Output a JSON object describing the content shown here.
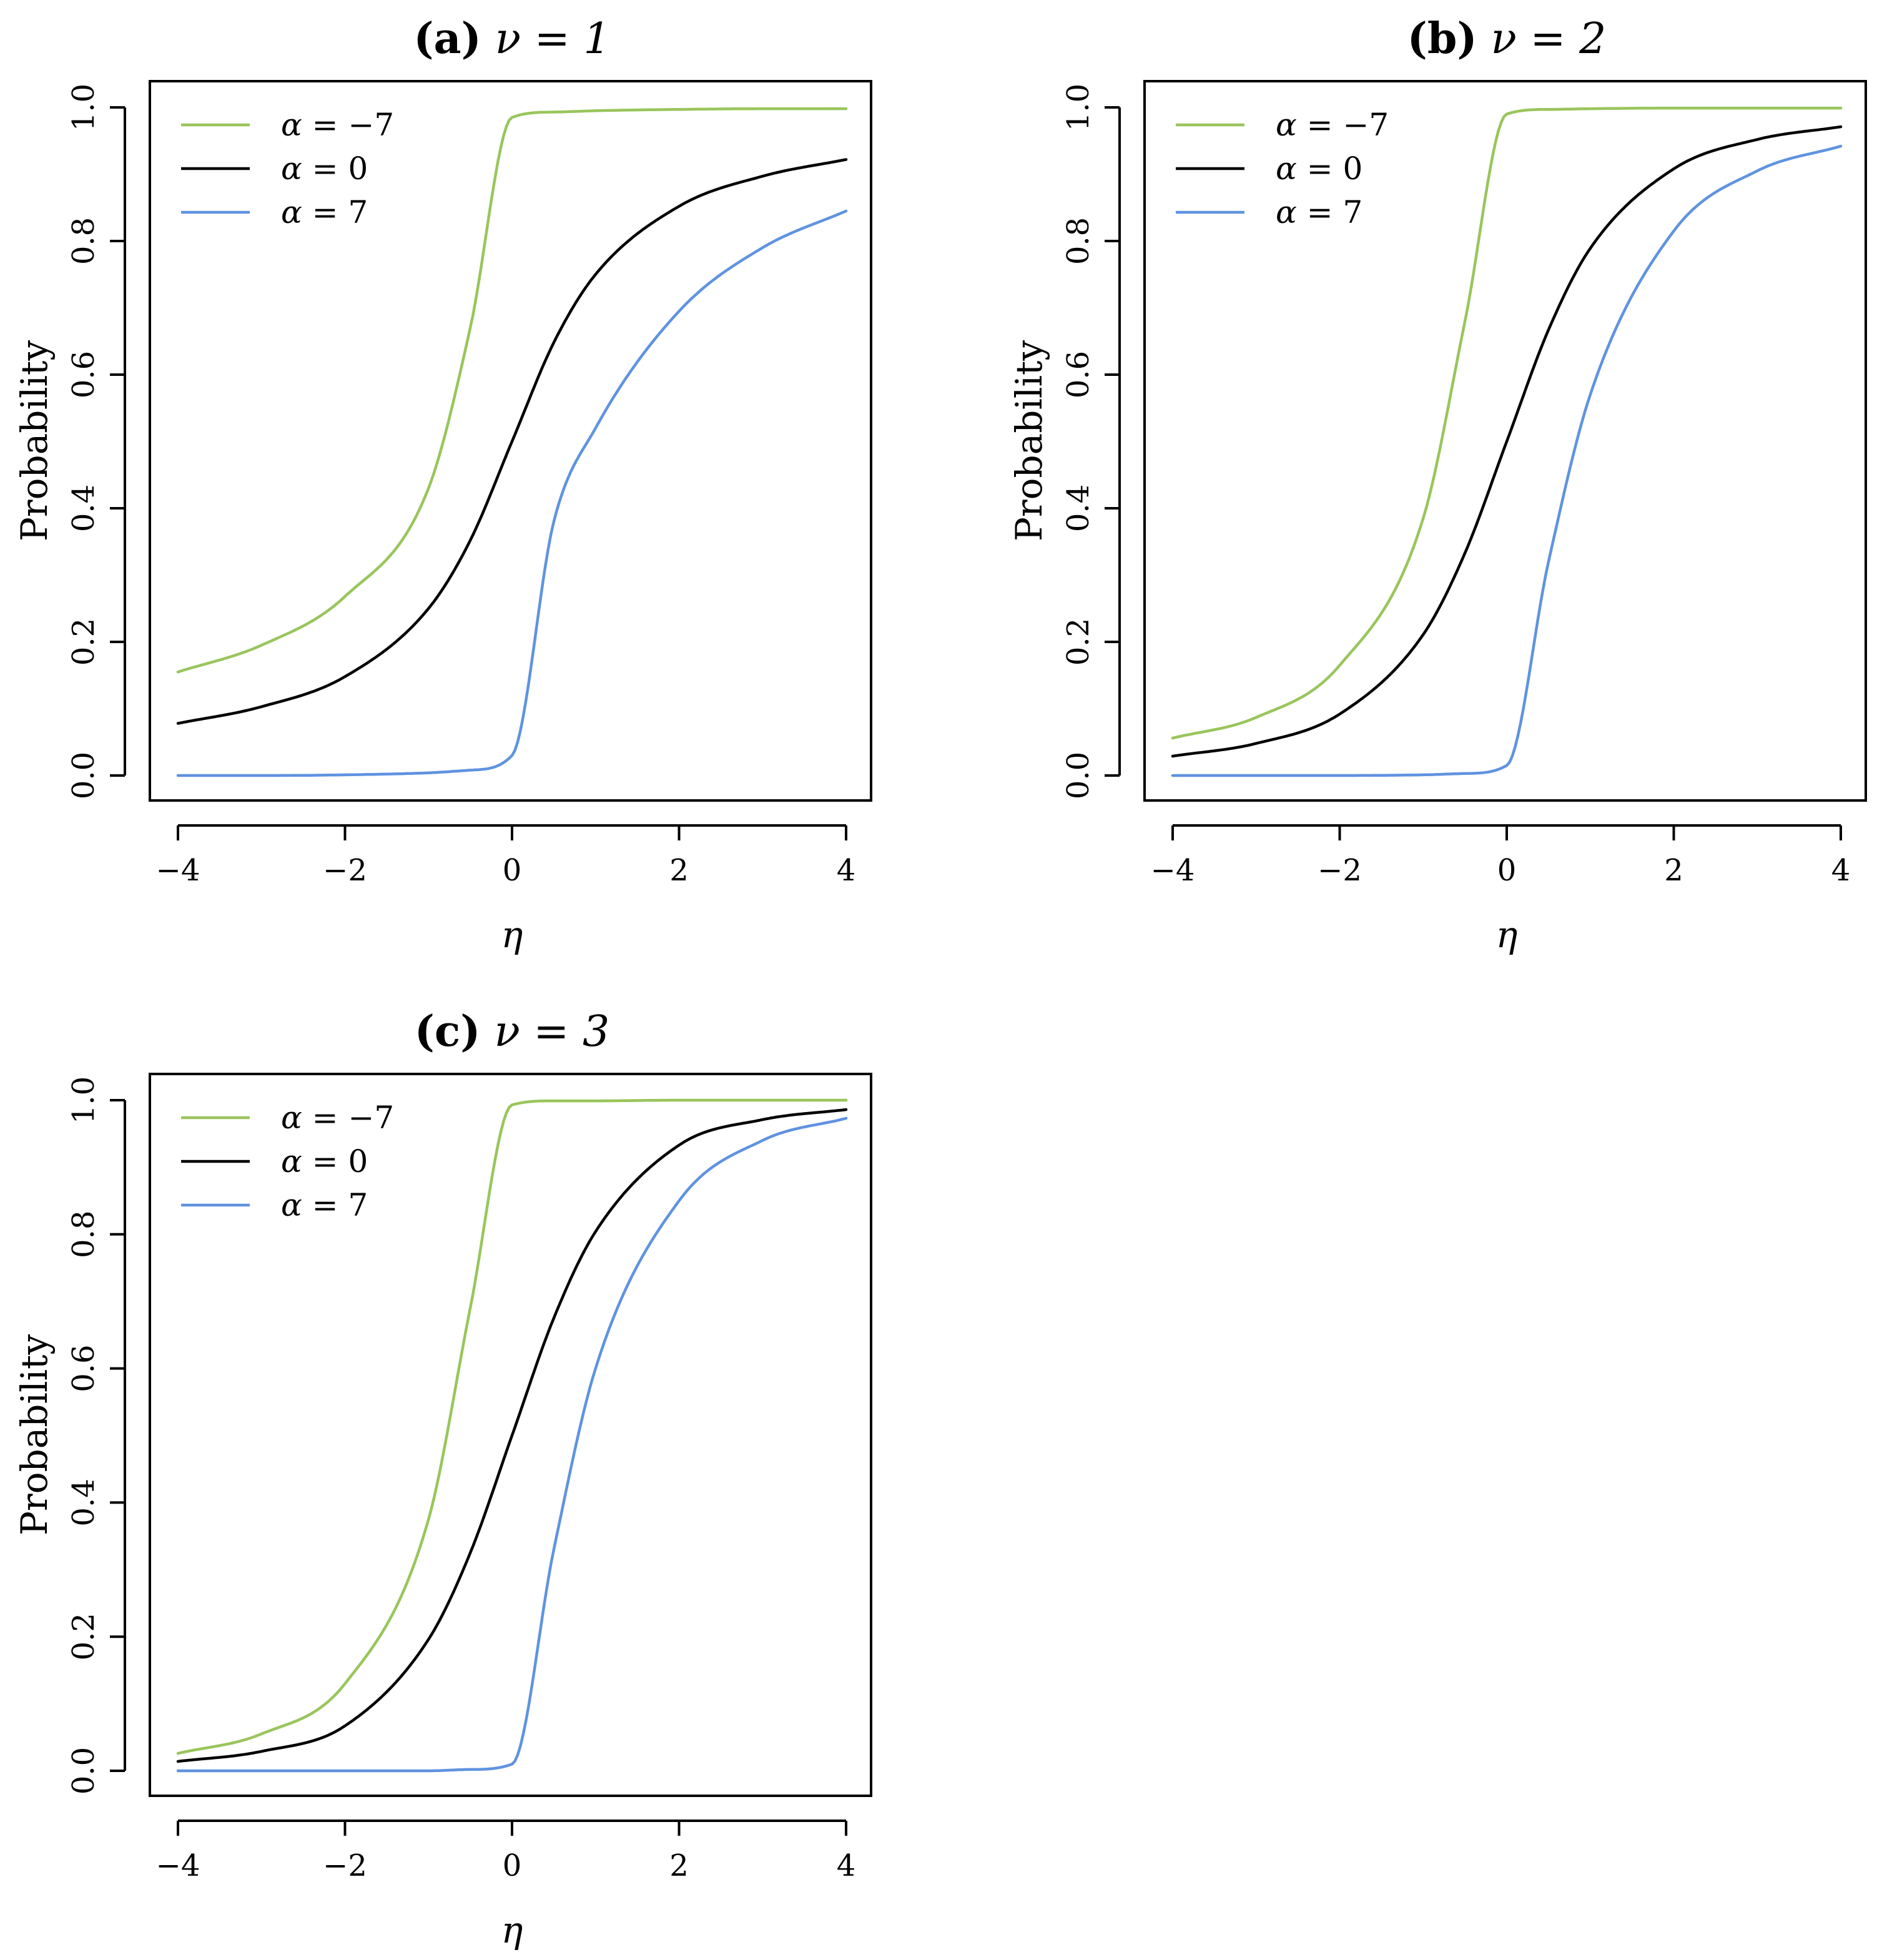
{
  "colors": {
    "green": "#99c55b",
    "black": "#000000",
    "blue": "#5f93e0"
  },
  "legend": [
    {
      "label": "α = −7",
      "symbol": "α",
      "rest": " = −7",
      "color_key": "green"
    },
    {
      "label": "α = 0",
      "symbol": "α",
      "rest": " = 0",
      "color_key": "black"
    },
    {
      "label": "α = 7",
      "symbol": "α",
      "rest": " = 7",
      "color_key": "blue"
    }
  ],
  "chart_data": [
    {
      "type": "line",
      "title": "(a) ν = 1",
      "title_tag": "(a)",
      "title_math": "ν = 1",
      "nu": 1,
      "xlabel": "η",
      "ylabel": "Probability",
      "xlim": [
        -4,
        4
      ],
      "ylim": [
        0,
        1
      ],
      "xticks": [
        -4,
        -2,
        0,
        2,
        4
      ],
      "xtick_labels": [
        "−4",
        "−2",
        "0",
        "2",
        "4"
      ],
      "yticks": [
        0,
        0.2,
        0.4,
        0.6,
        0.8,
        1
      ],
      "ytick_labels": [
        "0.0",
        "0.2",
        "0.4",
        "0.6",
        "0.8",
        "1.0"
      ],
      "legend_position": "top-left",
      "series": [
        {
          "name": "α = −7",
          "alpha": -7,
          "color_key": "green",
          "x": [
            -4,
            -3,
            -2,
            -1,
            -0.5,
            0,
            0.5,
            1,
            2,
            3,
            4
          ],
          "y": [
            0.155,
            0.195,
            0.268,
            0.43,
            0.67,
            0.985,
            0.993,
            0.995,
            0.997,
            0.998,
            0.998
          ]
        },
        {
          "name": "α = 0",
          "alpha": 0,
          "color_key": "black",
          "x": [
            -4,
            -3,
            -2,
            -1,
            -0.5,
            0,
            0.5,
            1,
            2,
            3,
            4
          ],
          "y": [
            0.078,
            0.103,
            0.148,
            0.25,
            0.352,
            0.5,
            0.648,
            0.75,
            0.852,
            0.897,
            0.922
          ]
        },
        {
          "name": "α = 7",
          "alpha": 7,
          "color_key": "blue",
          "x": [
            -4,
            -3,
            -2,
            -1,
            -0.5,
            0,
            0.5,
            1,
            2,
            3,
            4
          ],
          "y": [
            0.0,
            0.0,
            0.001,
            0.004,
            0.008,
            0.03,
            0.38,
            0.52,
            0.695,
            0.79,
            0.845
          ]
        }
      ]
    },
    {
      "type": "line",
      "title": "(b) ν = 2",
      "title_tag": "(b)",
      "title_math": "ν = 2",
      "nu": 2,
      "xlabel": "η",
      "ylabel": "Probability",
      "xlim": [
        -4,
        4
      ],
      "ylim": [
        0,
        1
      ],
      "xticks": [
        -4,
        -2,
        0,
        2,
        4
      ],
      "xtick_labels": [
        "−4",
        "−2",
        "0",
        "2",
        "4"
      ],
      "yticks": [
        0,
        0.2,
        0.4,
        0.6,
        0.8,
        1
      ],
      "ytick_labels": [
        "0.0",
        "0.2",
        "0.4",
        "0.6",
        "0.8",
        "1.0"
      ],
      "legend_position": "top-left",
      "series": [
        {
          "name": "α = −7",
          "alpha": -7,
          "color_key": "green",
          "x": [
            -4,
            -3,
            -2,
            -1,
            -0.5,
            0,
            0.5,
            1,
            2,
            3,
            4
          ],
          "y": [
            0.056,
            0.087,
            0.165,
            0.385,
            0.68,
            0.99,
            0.997,
            0.998,
            0.999,
            0.999,
            0.999
          ]
        },
        {
          "name": "α = 0",
          "alpha": 0,
          "color_key": "black",
          "x": [
            -4,
            -3,
            -2,
            -1,
            -0.5,
            0,
            0.5,
            1,
            2,
            3,
            4
          ],
          "y": [
            0.029,
            0.048,
            0.092,
            0.211,
            0.333,
            0.5,
            0.667,
            0.789,
            0.908,
            0.952,
            0.971
          ]
        },
        {
          "name": "α = 7",
          "alpha": 7,
          "color_key": "blue",
          "x": [
            -4,
            -3,
            -2,
            -1,
            -0.5,
            0,
            0.5,
            1,
            2,
            3,
            4
          ],
          "y": [
            0.0,
            0.0,
            0.0,
            0.001,
            0.003,
            0.015,
            0.32,
            0.57,
            0.815,
            0.905,
            0.942
          ]
        }
      ]
    },
    {
      "type": "line",
      "title": "(c) ν = 3",
      "title_tag": "(c)",
      "title_math": "ν = 3",
      "nu": 3,
      "xlabel": "η",
      "ylabel": "Probability",
      "xlim": [
        -4,
        4
      ],
      "ylim": [
        0,
        1
      ],
      "xticks": [
        -4,
        -2,
        0,
        2,
        4
      ],
      "xtick_labels": [
        "−4",
        "−2",
        "0",
        "2",
        "4"
      ],
      "yticks": [
        0,
        0.2,
        0.4,
        0.6,
        0.8,
        1
      ],
      "ytick_labels": [
        "0.0",
        "0.2",
        "0.4",
        "0.6",
        "0.8",
        "1.0"
      ],
      "legend_position": "top-left",
      "series": [
        {
          "name": "α = −7",
          "alpha": -7,
          "color_key": "green",
          "x": [
            -4,
            -3,
            -2,
            -1,
            -0.5,
            0,
            0.5,
            1,
            2,
            3,
            4
          ],
          "y": [
            0.026,
            0.055,
            0.13,
            0.375,
            0.69,
            0.993,
            0.999,
            0.999,
            1.0,
            1.0,
            1.0
          ]
        },
        {
          "name": "α = 0",
          "alpha": 0,
          "color_key": "black",
          "x": [
            -4,
            -3,
            -2,
            -1,
            -0.5,
            0,
            0.5,
            1,
            2,
            3,
            4
          ],
          "y": [
            0.014,
            0.029,
            0.067,
            0.196,
            0.325,
            0.5,
            0.675,
            0.804,
            0.933,
            0.971,
            0.986
          ]
        },
        {
          "name": "α = 7",
          "alpha": 7,
          "color_key": "blue",
          "x": [
            -4,
            -3,
            -2,
            -1,
            -0.5,
            0,
            0.5,
            1,
            2,
            3,
            4
          ],
          "y": [
            0.0,
            0.0,
            0.0,
            0.0,
            0.002,
            0.01,
            0.33,
            0.6,
            0.85,
            0.94,
            0.973
          ]
        }
      ]
    }
  ]
}
